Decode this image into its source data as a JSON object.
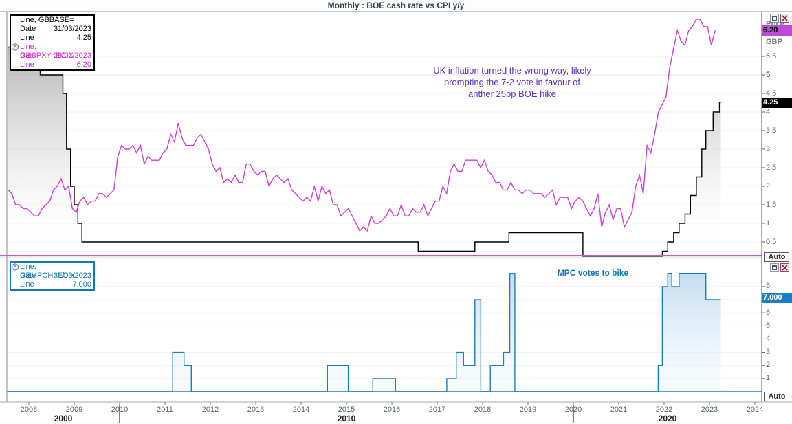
{
  "title": "Monthly : BOE cash rate vs CPI y/y",
  "colors": {
    "cpi_line": "#cc3fd6",
    "base_line": "#000000",
    "votes_line": "#1a7dc0",
    "separator": "#c45ec9",
    "grid": "#f1f1f1",
    "axis": "#5a5a5a",
    "cpi_badge_bg": "#bf49d8",
    "rate_badge_bg": "#000000",
    "votes_badge_bg": "#1b7ec2"
  },
  "top_panel": {
    "legend": {
      "series1": {
        "name": "Line, GBBASE=",
        "date_label": "Date",
        "date": "31/03/2023",
        "line_label": "Line",
        "value": "4.25"
      },
      "series2": {
        "name": "Line, GBCPXY=ECIX",
        "date_label": "Date",
        "date": "28/02/2023",
        "line_label": "Line",
        "value": "6.20"
      }
    },
    "annotation": {
      "line1": "UK inflation turned the wrong way, likely",
      "line2": "prompting the 7-2 vote in favour of",
      "line3": "anther 25bp BOE hike"
    },
    "axis": {
      "title": "Price",
      "currency": "GBP",
      "cpi_badge": "6.20",
      "rate_badge": "4.25",
      "ticks": [
        "5.5",
        "5",
        "4.5",
        "4",
        "3.5",
        "3",
        "2.5",
        "2",
        "1.5",
        "1",
        "0.5"
      ],
      "auto": "Auto"
    }
  },
  "bottom_panel": {
    "legend": {
      "series": {
        "name": "Line, GBMPCH=ECIX",
        "date_label": "Date",
        "date": "31/03/2023",
        "line_label": "Line",
        "value": "7.000"
      }
    },
    "annotation": "MPC votes to bike",
    "axis": {
      "ticks": [
        "8",
        "6",
        "5",
        "4",
        "3",
        "2",
        "1"
      ],
      "badge": "7.000",
      "auto": "Auto"
    }
  },
  "x_axis": {
    "years": [
      "2008",
      "2009",
      "2010",
      "2011",
      "2012",
      "2013",
      "2014",
      "2015",
      "2016",
      "2017",
      "2018",
      "2019",
      "2020",
      "2021",
      "2022",
      "2023",
      "2024"
    ],
    "first_year": 2008,
    "decade_labels": [
      "2000",
      "2010",
      "2020"
    ]
  },
  "chart_data": [
    {
      "type": "line",
      "panel": "top",
      "title": "BOE cash rate vs CPI y/y (monthly)",
      "ylabel": "Price (GBP)",
      "ylim": [
        0,
        6.7
      ],
      "xlim_years": [
        2007.5,
        2024.2
      ],
      "grid": "horizontal-faint",
      "legend_position": "top-left",
      "series": [
        {
          "name": "GBBASE= (BOE cash rate)",
          "style": "step",
          "fill": "gray-gradient",
          "last_date": "31/03/2023",
          "last_value": 4.25,
          "x_end": 2023.25,
          "points": [
            [
              2007.54,
              5.75
            ],
            [
              2007.92,
              5.5
            ],
            [
              2008.08,
              5.25
            ],
            [
              2008.25,
              5.0
            ],
            [
              2008.75,
              4.5
            ],
            [
              2008.83,
              3.0
            ],
            [
              2008.92,
              2.0
            ],
            [
              2009.0,
              1.5
            ],
            [
              2009.08,
              1.0
            ],
            [
              2009.17,
              0.5
            ],
            [
              2016.58,
              0.25
            ],
            [
              2017.83,
              0.5
            ],
            [
              2018.58,
              0.75
            ],
            [
              2020.21,
              0.1
            ],
            [
              2021.96,
              0.25
            ],
            [
              2022.08,
              0.5
            ],
            [
              2022.21,
              0.75
            ],
            [
              2022.33,
              1.0
            ],
            [
              2022.46,
              1.25
            ],
            [
              2022.58,
              1.75
            ],
            [
              2022.71,
              2.25
            ],
            [
              2022.83,
              3.0
            ],
            [
              2022.92,
              3.5
            ],
            [
              2023.08,
              4.0
            ],
            [
              2023.22,
              4.25
            ]
          ]
        },
        {
          "name": "GBCPXY=ECIX (UK CPI y/y %)",
          "style": "line",
          "last_date": "28/02/2023",
          "last_value": 6.2,
          "start_year_frac": 2007.5417,
          "interval_years": 0.083333,
          "values": [
            1.9,
            1.8,
            1.5,
            1.5,
            1.4,
            1.4,
            1.3,
            1.2,
            1.2,
            1.4,
            1.5,
            1.6,
            1.9,
            2.0,
            2.2,
            1.9,
            2.0,
            1.4,
            1.3,
            1.6,
            1.7,
            1.5,
            1.6,
            1.6,
            1.8,
            1.8,
            1.7,
            1.8,
            1.9,
            2.8,
            3.1,
            3.0,
            3.0,
            3.1,
            2.9,
            3.1,
            2.6,
            2.8,
            2.7,
            2.7,
            2.7,
            2.9,
            3.0,
            3.4,
            3.2,
            3.7,
            3.3,
            3.1,
            3.1,
            3.1,
            3.3,
            3.4,
            3.2,
            3.0,
            2.6,
            2.4,
            2.5,
            2.1,
            2.2,
            2.1,
            2.3,
            2.1,
            2.1,
            2.6,
            2.6,
            2.4,
            2.3,
            2.4,
            2.4,
            2.0,
            2.2,
            2.3,
            2.2,
            2.1,
            2.2,
            1.9,
            1.8,
            1.7,
            1.6,
            1.7,
            1.6,
            2.0,
            1.6,
            2.0,
            1.8,
            1.9,
            1.5,
            1.5,
            1.2,
            1.3,
            1.4,
            1.2,
            1.0,
            0.8,
            0.9,
            0.8,
            1.2,
            1.0,
            1.0,
            1.1,
            1.2,
            1.4,
            1.2,
            1.2,
            1.5,
            1.2,
            1.2,
            1.4,
            1.3,
            1.3,
            1.5,
            1.2,
            1.4,
            1.6,
            1.6,
            2.0,
            1.8,
            2.4,
            2.6,
            2.4,
            2.4,
            2.7,
            2.7,
            2.7,
            2.7,
            2.5,
            2.7,
            2.4,
            2.3,
            2.1,
            2.1,
            1.9,
            1.9,
            2.1,
            1.9,
            1.9,
            1.8,
            1.9,
            1.9,
            1.8,
            1.8,
            1.8,
            1.7,
            1.8,
            1.9,
            1.5,
            1.7,
            1.7,
            1.7,
            1.4,
            1.6,
            1.7,
            1.6,
            1.4,
            1.2,
            1.4,
            1.8,
            0.9,
            1.3,
            1.5,
            1.1,
            1.4,
            1.4,
            0.9,
            1.1,
            1.3,
            2.0,
            2.3,
            1.8,
            3.1,
            2.9,
            3.4,
            4.0,
            4.2,
            4.4,
            5.2,
            5.7,
            6.2,
            5.9,
            5.8,
            6.2,
            6.3,
            6.5,
            6.5,
            6.3,
            6.3,
            5.8,
            6.2
          ]
        }
      ]
    },
    {
      "type": "area",
      "panel": "bottom",
      "title": "GBMPCH=ECIX (MPC votes to hike)",
      "ylim": [
        0,
        9.3
      ],
      "grid": "horizontal-faint",
      "legend_position": "top-left",
      "series": [
        {
          "name": "GBMPCH=ECIX (MPC votes)",
          "style": "step",
          "fill": "blue-gradient",
          "last_date": "31/03/2023",
          "last_value": 7.0,
          "x_end": 2023.25,
          "points": [
            [
              2007.54,
              0
            ],
            [
              2011.17,
              3
            ],
            [
              2011.42,
              2
            ],
            [
              2011.58,
              0
            ],
            [
              2014.58,
              2
            ],
            [
              2015.04,
              0
            ],
            [
              2015.58,
              1
            ],
            [
              2016.08,
              0
            ],
            [
              2017.21,
              1
            ],
            [
              2017.42,
              3
            ],
            [
              2017.58,
              2
            ],
            [
              2017.83,
              7
            ],
            [
              2017.96,
              0
            ],
            [
              2018.17,
              2
            ],
            [
              2018.46,
              3
            ],
            [
              2018.6,
              9
            ],
            [
              2018.71,
              0
            ],
            [
              2021.87,
              2
            ],
            [
              2021.96,
              8
            ],
            [
              2022.08,
              9
            ],
            [
              2022.17,
              8
            ],
            [
              2022.33,
              9
            ],
            [
              2022.92,
              7
            ]
          ]
        }
      ]
    }
  ]
}
